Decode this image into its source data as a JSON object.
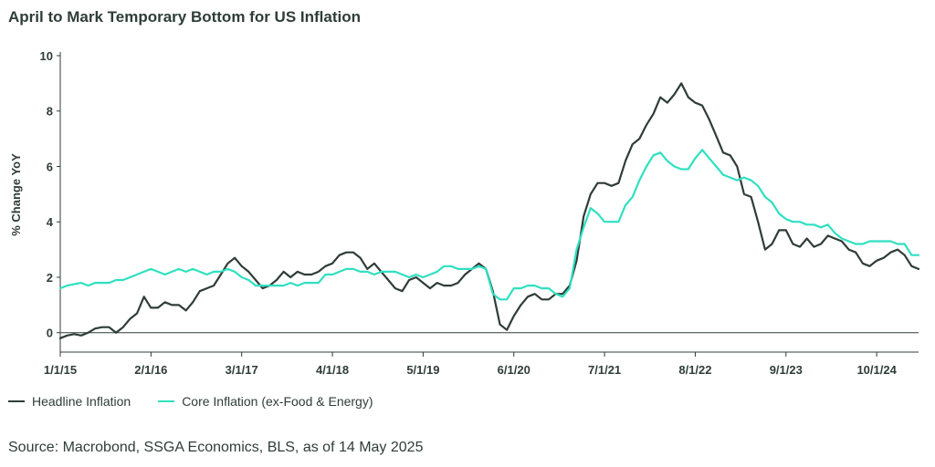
{
  "title": "April to Mark Temporary Bottom for US Inflation",
  "source": "Source: Macrobond, SSGA Economics, BLS, as of 14 May 2025",
  "colors": {
    "headline": "#2f3d37",
    "core": "#2fe0c0",
    "text": "#2f3d37"
  },
  "chart_data": {
    "type": "line",
    "title": "April to Mark Temporary Bottom for US Inflation",
    "xlabel": "",
    "ylabel": "% Change YoY",
    "ylim": [
      -0.7,
      10
    ],
    "yticks": [
      0,
      2,
      4,
      6,
      8,
      10
    ],
    "x_start": "2015-01",
    "x_end": "2025-04",
    "xticks": [
      {
        "label": "1/1/15",
        "date": "2015-01"
      },
      {
        "label": "2/1/16",
        "date": "2016-02"
      },
      {
        "label": "3/1/17",
        "date": "2017-03"
      },
      {
        "label": "4/1/18",
        "date": "2018-04"
      },
      {
        "label": "5/1/19",
        "date": "2019-05"
      },
      {
        "label": "6/1/20",
        "date": "2020-06"
      },
      {
        "label": "7/1/21",
        "date": "2021-07"
      },
      {
        "label": "8/1/22",
        "date": "2022-08"
      },
      {
        "label": "9/1/23",
        "date": "2023-09"
      },
      {
        "label": "10/1/24",
        "date": "2024-10"
      }
    ],
    "legend_position": "bottom",
    "grid": false,
    "series": [
      {
        "name": "Headline Inflation",
        "color": "#2f3d37",
        "values": [
          -0.2,
          -0.1,
          -0.05,
          -0.1,
          0.0,
          0.15,
          0.2,
          0.2,
          0.0,
          0.2,
          0.5,
          0.7,
          1.3,
          0.9,
          0.9,
          1.1,
          1.0,
          1.0,
          0.8,
          1.1,
          1.5,
          1.6,
          1.7,
          2.1,
          2.5,
          2.7,
          2.4,
          2.2,
          1.9,
          1.6,
          1.7,
          1.9,
          2.2,
          2.0,
          2.2,
          2.1,
          2.1,
          2.2,
          2.4,
          2.5,
          2.8,
          2.9,
          2.9,
          2.7,
          2.3,
          2.5,
          2.2,
          1.9,
          1.6,
          1.5,
          1.9,
          2.0,
          1.8,
          1.6,
          1.8,
          1.7,
          1.7,
          1.8,
          2.1,
          2.3,
          2.5,
          2.3,
          1.5,
          0.3,
          0.1,
          0.6,
          1.0,
          1.3,
          1.4,
          1.2,
          1.2,
          1.4,
          1.4,
          1.7,
          2.6,
          4.2,
          5.0,
          5.4,
          5.4,
          5.3,
          5.4,
          6.2,
          6.8,
          7.0,
          7.5,
          7.9,
          8.5,
          8.3,
          8.6,
          9.0,
          8.5,
          8.3,
          8.2,
          7.7,
          7.1,
          6.5,
          6.4,
          6.0,
          5.0,
          4.9,
          4.0,
          3.0,
          3.2,
          3.7,
          3.7,
          3.2,
          3.1,
          3.4,
          3.1,
          3.2,
          3.5,
          3.4,
          3.3,
          3.0,
          2.9,
          2.5,
          2.4,
          2.6,
          2.7,
          2.9,
          3.0,
          2.8,
          2.4,
          2.3
        ]
      },
      {
        "name": "Core Inflation (ex-Food & Energy)",
        "color": "#2fe0c0",
        "values": [
          1.6,
          1.7,
          1.75,
          1.8,
          1.7,
          1.8,
          1.8,
          1.8,
          1.9,
          1.9,
          2.0,
          2.1,
          2.2,
          2.3,
          2.2,
          2.1,
          2.2,
          2.3,
          2.2,
          2.3,
          2.2,
          2.1,
          2.2,
          2.2,
          2.3,
          2.2,
          2.0,
          1.9,
          1.7,
          1.7,
          1.7,
          1.7,
          1.7,
          1.8,
          1.7,
          1.8,
          1.8,
          1.8,
          2.1,
          2.1,
          2.2,
          2.3,
          2.3,
          2.2,
          2.2,
          2.1,
          2.2,
          2.2,
          2.2,
          2.1,
          2.0,
          2.1,
          2.0,
          2.1,
          2.2,
          2.4,
          2.4,
          2.3,
          2.3,
          2.3,
          2.4,
          2.3,
          1.4,
          1.2,
          1.2,
          1.6,
          1.6,
          1.7,
          1.7,
          1.6,
          1.6,
          1.4,
          1.3,
          1.6,
          3.0,
          3.8,
          4.5,
          4.3,
          4.0,
          4.0,
          4.0,
          4.6,
          4.9,
          5.5,
          6.0,
          6.4,
          6.5,
          6.2,
          6.0,
          5.9,
          5.9,
          6.3,
          6.6,
          6.3,
          6.0,
          5.7,
          5.6,
          5.5,
          5.6,
          5.5,
          5.3,
          4.9,
          4.7,
          4.3,
          4.1,
          4.0,
          4.0,
          3.9,
          3.9,
          3.8,
          3.9,
          3.6,
          3.4,
          3.3,
          3.2,
          3.2,
          3.3,
          3.3,
          3.3,
          3.3,
          3.2,
          3.2,
          2.8,
          2.8
        ]
      }
    ]
  }
}
